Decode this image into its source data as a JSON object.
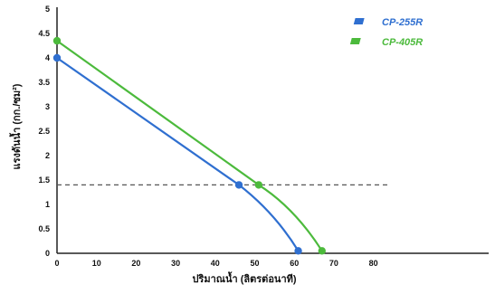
{
  "chart_data": {
    "type": "line",
    "title": "",
    "xlabel": "ปริมาณน้ำ (ลิตรต่อนาที)",
    "ylabel": "แรงดันน้ำ (กก./ซม²)",
    "xlim": [
      0,
      85
    ],
    "ylim": [
      0,
      5
    ],
    "x_ticks": [
      "0",
      "10",
      "20",
      "30",
      "40",
      "50",
      "60",
      "70",
      "80"
    ],
    "y_ticks": [
      "0",
      "0.5",
      "1",
      "1.5",
      "2",
      "2.5",
      "3",
      "3.5",
      "4",
      "4.5",
      "5"
    ],
    "grid": false,
    "legend_position": "top-right",
    "reference_line": {
      "y": 1.4,
      "x_range": [
        0,
        84
      ],
      "style": "dashed"
    },
    "series": [
      {
        "name": "CP-255R",
        "color": "#2f6fd0",
        "points": [
          {
            "x": 0,
            "y": 4.0
          },
          {
            "x": 46,
            "y": 1.4
          },
          {
            "x": 55,
            "y": 0.8
          },
          {
            "x": 61,
            "y": 0.05
          }
        ],
        "markers": [
          {
            "x": 0,
            "y": 4.0
          },
          {
            "x": 46,
            "y": 1.4
          },
          {
            "x": 61,
            "y": 0.05
          }
        ]
      },
      {
        "name": "CP-405R",
        "color": "#4cba3c",
        "points": [
          {
            "x": 0,
            "y": 4.35
          },
          {
            "x": 51,
            "y": 1.4
          },
          {
            "x": 60,
            "y": 0.9
          },
          {
            "x": 67,
            "y": 0.05
          }
        ],
        "markers": [
          {
            "x": 0,
            "y": 4.35
          },
          {
            "x": 51,
            "y": 1.4
          },
          {
            "x": 67,
            "y": 0.05
          }
        ]
      }
    ]
  }
}
